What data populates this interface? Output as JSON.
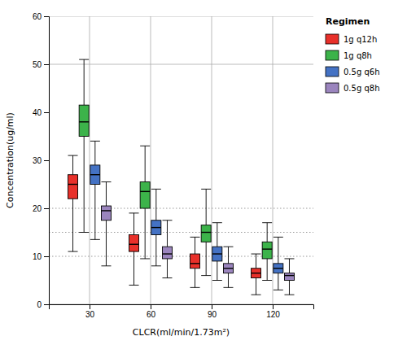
{
  "chart_data": {
    "type": "box",
    "xlabel": "CLCR(ml/min/1.73m²)",
    "ylabel": "Concentration(ug/ml)",
    "x": [
      30,
      60,
      90,
      120
    ],
    "xlim": [
      10,
      140
    ],
    "xticks": [
      30,
      60,
      90,
      120
    ],
    "ylim": [
      0,
      60
    ],
    "yticks": [
      0,
      10,
      20,
      30,
      40,
      50,
      60
    ],
    "grid": "x",
    "hlines": [
      {
        "value": 0,
        "line_style": "solid"
      },
      {
        "value": 50,
        "line_style": "solid"
      },
      {
        "value": 60,
        "line_style": "solid"
      },
      {
        "value": 10,
        "line_style": "dotted"
      },
      {
        "value": 15,
        "line_style": "dotted"
      },
      {
        "value": 20,
        "line_style": "dotted"
      }
    ],
    "legend": "right",
    "legend_title": "Regimen",
    "series": [
      {
        "name": "1g q12h",
        "color": "#E8302A",
        "whislo": [
          11.0,
          4.0,
          3.5,
          2.0
        ],
        "q1": [
          22.0,
          11.0,
          7.5,
          5.5
        ],
        "med": [
          25.0,
          12.5,
          8.5,
          6.5
        ],
        "q3": [
          27.0,
          14.5,
          10.5,
          7.5
        ],
        "whishi": [
          31.0,
          19.0,
          14.0,
          10.5
        ]
      },
      {
        "name": "1g q8h",
        "color": "#3CB34A",
        "whislo": [
          15.0,
          9.5,
          6.0,
          5.0
        ],
        "q1": [
          35.0,
          20.0,
          13.0,
          9.5
        ],
        "med": [
          38.0,
          23.5,
          15.0,
          11.5
        ],
        "q3": [
          41.5,
          25.5,
          16.5,
          13.0
        ],
        "whishi": [
          51.0,
          33.0,
          24.0,
          17.0
        ]
      },
      {
        "name": "0.5g q6h",
        "color": "#4472C4",
        "whislo": [
          13.5,
          8.0,
          5.0,
          3.0
        ],
        "q1": [
          25.0,
          14.5,
          9.0,
          6.5
        ],
        "med": [
          27.0,
          16.0,
          10.5,
          7.5
        ],
        "q3": [
          29.0,
          17.5,
          12.0,
          8.5
        ],
        "whishi": [
          34.0,
          24.0,
          17.0,
          14.0
        ]
      },
      {
        "name": "0.5g q8h",
        "color": "#9B85BE",
        "whislo": [
          8.0,
          5.5,
          3.5,
          2.0
        ],
        "q1": [
          17.5,
          9.5,
          6.5,
          5.0
        ],
        "med": [
          19.5,
          10.5,
          7.5,
          6.0
        ],
        "q3": [
          20.5,
          12.0,
          8.5,
          6.5
        ],
        "whishi": [
          25.5,
          17.5,
          12.0,
          9.5
        ]
      }
    ]
  }
}
